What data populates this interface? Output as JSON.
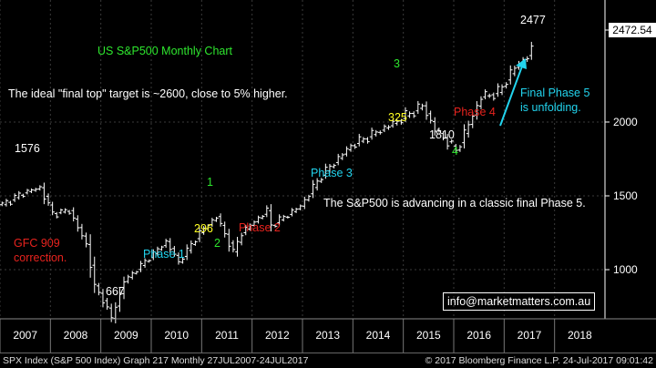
{
  "chart_data": {
    "type": "ohlc",
    "title": "US S&P500 Monthly Chart",
    "x_range": [
      "2007-01",
      "2018-12"
    ],
    "year_labels": [
      "2007",
      "2008",
      "2009",
      "2010",
      "2011",
      "2012",
      "2013",
      "2014",
      "2015",
      "2016",
      "2017",
      "2018"
    ],
    "y_ticks": [
      1000,
      1500,
      2000
    ],
    "last_price_label": "2472.54",
    "series_points": [
      [
        "2007-01",
        1440
      ],
      [
        "2007-06",
        1520
      ],
      [
        "2007-10",
        1555
      ],
      [
        "2008-01",
        1380
      ],
      [
        "2008-05",
        1400
      ],
      [
        "2008-09",
        1170
      ],
      [
        "2008-11",
        890
      ],
      [
        "2009-02",
        740
      ],
      [
        "2009-03",
        670
      ],
      [
        "2009-06",
        920
      ],
      [
        "2010-04",
        1190
      ],
      [
        "2010-07",
        1050
      ],
      [
        "2010-12",
        1250
      ],
      [
        "2011-04",
        1360
      ],
      [
        "2011-08",
        1120
      ],
      [
        "2011-10",
        1250
      ],
      [
        "2012-04",
        1400
      ],
      [
        "2012-05",
        1300
      ],
      [
        "2012-12",
        1430
      ],
      [
        "2013-05",
        1640
      ],
      [
        "2013-12",
        1840
      ],
      [
        "2014-10",
        1990
      ],
      [
        "2015-05",
        2110
      ],
      [
        "2015-08",
        1950
      ],
      [
        "2016-01",
        1810
      ],
      [
        "2016-02",
        1860
      ],
      [
        "2016-07",
        2170
      ],
      [
        "2016-11",
        2200
      ],
      [
        "2017-03",
        2370
      ],
      [
        "2017-07",
        2477
      ]
    ],
    "annotations": [
      {
        "text": "US S&P500 Monthly Chart",
        "color": "green"
      },
      {
        "text": "The ideal \"final top\" target is ~2600, close to 5% higher.",
        "color": "white"
      },
      {
        "text": "1576",
        "color": "white"
      },
      {
        "text": "GFC 909",
        "color": "red"
      },
      {
        "text": "correction.",
        "color": "red"
      },
      {
        "text": "667",
        "color": "white"
      },
      {
        "text": "Phase 1",
        "color": "cyan"
      },
      {
        "text": "1",
        "color": "green"
      },
      {
        "text": "296",
        "color": "yellow"
      },
      {
        "text": "2",
        "color": "green"
      },
      {
        "text": "Phase 2",
        "color": "red"
      },
      {
        "text": "Phase 3",
        "color": "cyan"
      },
      {
        "text": "The S&P500 is advancing in a classic final Phase 5.",
        "color": "white"
      },
      {
        "text": "3",
        "color": "green"
      },
      {
        "text": "325",
        "color": "yellow"
      },
      {
        "text": "1810",
        "color": "white"
      },
      {
        "text": "4",
        "color": "green"
      },
      {
        "text": "Phase 4",
        "color": "red"
      },
      {
        "text": "2477",
        "color": "white"
      },
      {
        "text": "Final Phase 5",
        "color": "cyan"
      },
      {
        "text": "is unfolding.",
        "color": "cyan"
      }
    ]
  },
  "email": "info@marketmatters.com.au",
  "footer": {
    "left": "SPX Index (S&P 500 Index) Graph 217  Monthly 27JUL2007-24JUL2017",
    "right": "© 2017 Bloomberg Finance L.P.    24-Jul-2017 09:01:42"
  },
  "colors": {
    "background": "#000000",
    "bars": "#ffffff",
    "grid": "#3a3a3a",
    "arrow": "#22d4ee"
  }
}
